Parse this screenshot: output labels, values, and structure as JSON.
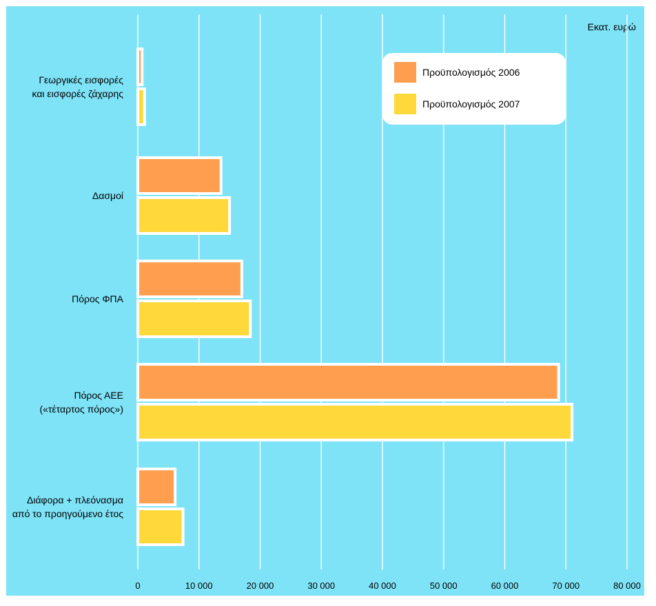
{
  "chart_data": {
    "type": "bar",
    "orientation": "horizontal",
    "unit_label": "Εκατ. ευρώ",
    "categories": [
      [
        "Γεωργικές εισφορές",
        "και εισφορές ζάχαρης"
      ],
      [
        "Δασμοί"
      ],
      [
        "Πόρος ΦΠΑ"
      ],
      [
        "Πόρος ΑΕΕ",
        "(«τέταρτος πόρος»)"
      ],
      [
        "Διάφορα + πλεόνασμα",
        "από το προηγούμενο έτος"
      ]
    ],
    "series": [
      {
        "name": "Προϋπολογισμός 2006",
        "color": "#ff9e4f",
        "values": [
          700,
          13600,
          17000,
          68800,
          6100
        ]
      },
      {
        "name": "Προϋπολογισμός 2007",
        "color": "#ffd93a",
        "values": [
          1100,
          15000,
          18400,
          71000,
          7400
        ]
      }
    ],
    "xlim": [
      0,
      80000
    ],
    "xticks": [
      "0",
      "10 000",
      "20 000",
      "30 000",
      "40 000",
      "50 000",
      "60 000",
      "70 000",
      "80 000"
    ],
    "grid": true,
    "legend_position": "top-right"
  }
}
